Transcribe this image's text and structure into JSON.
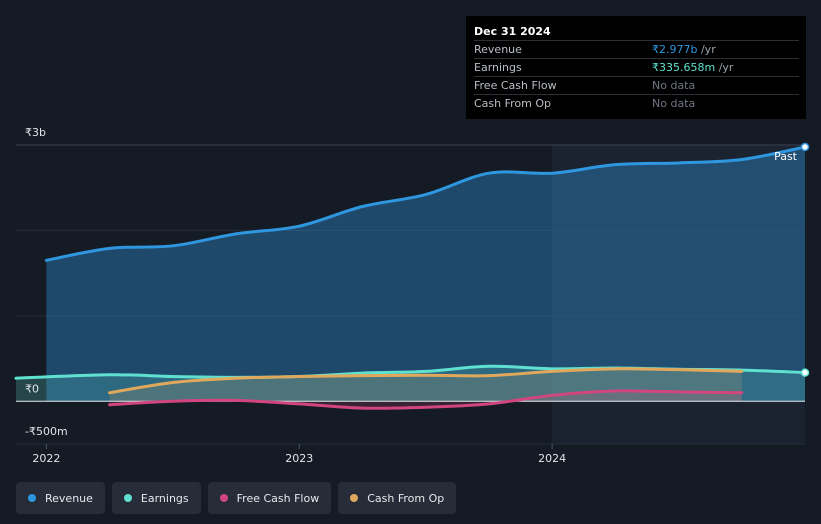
{
  "chart_data": {
    "type": "line",
    "title": "",
    "xlabel": "",
    "ylabel": "",
    "ylim": [
      -500,
      3000
    ],
    "y_axis_labels": [
      "₹3b",
      "₹0",
      "-₹500m"
    ],
    "x_ticks": [
      {
        "label": "2022",
        "t": 2022.0
      },
      {
        "label": "2023",
        "t": 2023.0
      },
      {
        "label": "2024",
        "t": 2024.0
      }
    ],
    "x_range": [
      2021.88,
      2025.0
    ],
    "past_start": 2024.0,
    "past_label": "Past",
    "series": [
      {
        "name": "Revenue",
        "color": "#2f96e0",
        "fill": true,
        "end_marker": true,
        "x": [
          2022.0,
          2022.25,
          2022.5,
          2022.75,
          2023.0,
          2023.25,
          2023.5,
          2023.75,
          2024.0,
          2024.25,
          2024.5,
          2024.75,
          2025.0
        ],
        "values": [
          1650,
          1790,
          1820,
          1960,
          2050,
          2280,
          2420,
          2670,
          2670,
          2770,
          2790,
          2830,
          2977
        ]
      },
      {
        "name": "Earnings",
        "color": "#5fe0d0",
        "fill": true,
        "end_marker": true,
        "x": [
          2021.88,
          2022.25,
          2022.5,
          2022.75,
          2023.0,
          2023.25,
          2023.5,
          2023.75,
          2024.0,
          2024.25,
          2024.5,
          2024.75,
          2025.0
        ],
        "values": [
          270,
          310,
          290,
          280,
          290,
          330,
          350,
          410,
          380,
          390,
          375,
          365,
          336
        ]
      },
      {
        "name": "Free Cash Flow",
        "color": "#d2467f",
        "fill": true,
        "end_marker": false,
        "x": [
          2022.25,
          2022.5,
          2022.75,
          2023.0,
          2023.25,
          2023.5,
          2023.75,
          2024.0,
          2024.25,
          2024.5,
          2024.75
        ],
        "values": [
          -40,
          0,
          10,
          -30,
          -80,
          -70,
          -30,
          70,
          120,
          110,
          100
        ]
      },
      {
        "name": "Cash From Op",
        "color": "#e0a85c",
        "fill": true,
        "end_marker": false,
        "x": [
          2022.25,
          2022.5,
          2022.75,
          2023.0,
          2023.25,
          2023.5,
          2023.75,
          2024.0,
          2024.25,
          2024.5,
          2024.75
        ],
        "values": [
          100,
          220,
          270,
          290,
          300,
          305,
          300,
          350,
          380,
          370,
          350
        ]
      }
    ]
  },
  "tooltip": {
    "date": "Dec 31 2024",
    "rows": [
      {
        "label": "Revenue",
        "value": "₹2.977b",
        "unit": " /yr",
        "color": "#2f96e0"
      },
      {
        "label": "Earnings",
        "value": "₹335.658m",
        "unit": " /yr",
        "color": "#5fe0d0"
      },
      {
        "label": "Free Cash Flow",
        "value": "No data",
        "unit": "",
        "color": "#6f7680"
      },
      {
        "label": "Cash From Op",
        "value": "No data",
        "unit": "",
        "color": "#6f7680"
      }
    ]
  },
  "legend": [
    {
      "label": "Revenue",
      "color": "#2f96e0"
    },
    {
      "label": "Earnings",
      "color": "#5fe0d0"
    },
    {
      "label": "Free Cash Flow",
      "color": "#d2467f"
    },
    {
      "label": "Cash From Op",
      "color": "#e0a85c"
    }
  ]
}
